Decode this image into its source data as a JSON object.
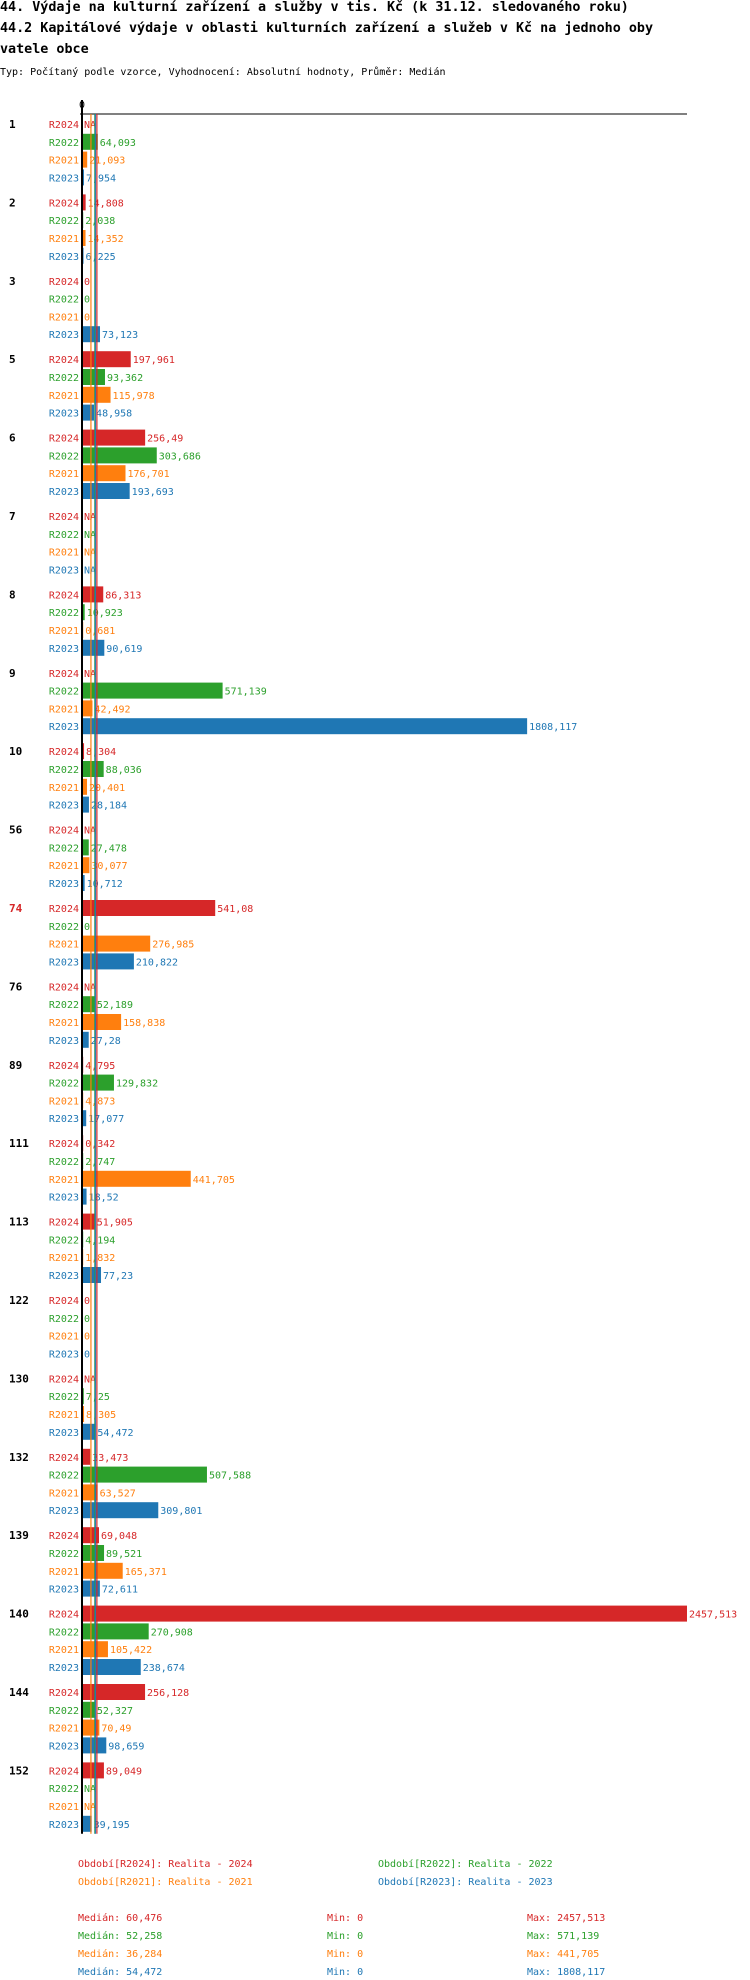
{
  "title_line1": "44. Výdaje na kulturní zařízení a služby v tis. Kč (k 31.12. sledovaného roku)",
  "title_line2": "44.2 Kapitálové výdaje v oblasti kulturních zařízení a služeb v Kč na jednoho oby",
  "title_line3": "vatele obce",
  "subtitle": "Typ: Počítaný podle vzorce, Vyhodnocení: Absolutní hodnoty, Průměr: Medián",
  "colors": {
    "R2024": "#d62728",
    "R2022": "#2ca02c",
    "R2021": "#ff7f0e",
    "R2023": "#1f77b4"
  },
  "chart_data": {
    "type": "bar",
    "orientation": "horizontal",
    "x_axis_label_zero": "0",
    "xlim": [
      0,
      2457.513
    ],
    "highlighted_group": "74",
    "series_order": [
      "R2024",
      "R2022",
      "R2021",
      "R2023"
    ],
    "groups": [
      {
        "label": "1",
        "bars": [
          {
            "s": "R2024",
            "v": null,
            "t": "NA"
          },
          {
            "s": "R2022",
            "v": 64.093,
            "t": "64,093"
          },
          {
            "s": "R2021",
            "v": 21.093,
            "t": "21,093"
          },
          {
            "s": "R2023",
            "v": 7.954,
            "t": "7,954"
          }
        ]
      },
      {
        "label": "2",
        "bars": [
          {
            "s": "R2024",
            "v": 14.808,
            "t": "14,808"
          },
          {
            "s": "R2022",
            "v": 2.038,
            "t": "2,038"
          },
          {
            "s": "R2021",
            "v": 14.352,
            "t": "14,352"
          },
          {
            "s": "R2023",
            "v": 6.225,
            "t": "6,225"
          }
        ]
      },
      {
        "label": "3",
        "bars": [
          {
            "s": "R2024",
            "v": 0,
            "t": "0"
          },
          {
            "s": "R2022",
            "v": 0,
            "t": "0"
          },
          {
            "s": "R2021",
            "v": 0,
            "t": "0"
          },
          {
            "s": "R2023",
            "v": 73.123,
            "t": "73,123"
          }
        ]
      },
      {
        "label": "5",
        "bars": [
          {
            "s": "R2024",
            "v": 197.961,
            "t": "197,961"
          },
          {
            "s": "R2022",
            "v": 93.362,
            "t": "93,362"
          },
          {
            "s": "R2021",
            "v": 115.978,
            "t": "115,978"
          },
          {
            "s": "R2023",
            "v": 48.958,
            "t": "48,958"
          }
        ]
      },
      {
        "label": "6",
        "bars": [
          {
            "s": "R2024",
            "v": 256.49,
            "t": "256,49"
          },
          {
            "s": "R2022",
            "v": 303.686,
            "t": "303,686"
          },
          {
            "s": "R2021",
            "v": 176.701,
            "t": "176,701"
          },
          {
            "s": "R2023",
            "v": 193.693,
            "t": "193,693"
          }
        ]
      },
      {
        "label": "7",
        "bars": [
          {
            "s": "R2024",
            "v": null,
            "t": "NA"
          },
          {
            "s": "R2022",
            "v": null,
            "t": "NA"
          },
          {
            "s": "R2021",
            "v": null,
            "t": "NA"
          },
          {
            "s": "R2023",
            "v": null,
            "t": "NA"
          }
        ]
      },
      {
        "label": "8",
        "bars": [
          {
            "s": "R2024",
            "v": 86.313,
            "t": "86,313"
          },
          {
            "s": "R2022",
            "v": 10.923,
            "t": "10,923"
          },
          {
            "s": "R2021",
            "v": 0.681,
            "t": "0,681"
          },
          {
            "s": "R2023",
            "v": 90.619,
            "t": "90,619"
          }
        ]
      },
      {
        "label": "9",
        "bars": [
          {
            "s": "R2024",
            "v": null,
            "t": "NA"
          },
          {
            "s": "R2022",
            "v": 571.139,
            "t": "571,139"
          },
          {
            "s": "R2021",
            "v": 42.492,
            "t": "42,492"
          },
          {
            "s": "R2023",
            "v": 1808.117,
            "t": "1808,117"
          }
        ]
      },
      {
        "label": "10",
        "bars": [
          {
            "s": "R2024",
            "v": 8.304,
            "t": "8,304"
          },
          {
            "s": "R2022",
            "v": 88.036,
            "t": "88,036"
          },
          {
            "s": "R2021",
            "v": 20.401,
            "t": "20,401"
          },
          {
            "s": "R2023",
            "v": 28.184,
            "t": "28,184"
          }
        ]
      },
      {
        "label": "56",
        "bars": [
          {
            "s": "R2024",
            "v": null,
            "t": "NA"
          },
          {
            "s": "R2022",
            "v": 27.478,
            "t": "27,478"
          },
          {
            "s": "R2021",
            "v": 30.077,
            "t": "30,077"
          },
          {
            "s": "R2023",
            "v": 10.712,
            "t": "10,712"
          }
        ]
      },
      {
        "label": "74",
        "bars": [
          {
            "s": "R2024",
            "v": 541.08,
            "t": "541,08"
          },
          {
            "s": "R2022",
            "v": 0,
            "t": "0"
          },
          {
            "s": "R2021",
            "v": 276.985,
            "t": "276,985"
          },
          {
            "s": "R2023",
            "v": 210.822,
            "t": "210,822"
          }
        ]
      },
      {
        "label": "76",
        "bars": [
          {
            "s": "R2024",
            "v": null,
            "t": "NA"
          },
          {
            "s": "R2022",
            "v": 52.189,
            "t": "52,189"
          },
          {
            "s": "R2021",
            "v": 158.838,
            "t": "158,838"
          },
          {
            "s": "R2023",
            "v": 27.28,
            "t": "27,28"
          }
        ]
      },
      {
        "label": "89",
        "bars": [
          {
            "s": "R2024",
            "v": 4.795,
            "t": "4,795"
          },
          {
            "s": "R2022",
            "v": 129.832,
            "t": "129,832"
          },
          {
            "s": "R2021",
            "v": 4.873,
            "t": "4,873"
          },
          {
            "s": "R2023",
            "v": 17.077,
            "t": "17,077"
          }
        ]
      },
      {
        "label": "111",
        "bars": [
          {
            "s": "R2024",
            "v": 0.342,
            "t": "0,342"
          },
          {
            "s": "R2022",
            "v": 2.747,
            "t": "2,747"
          },
          {
            "s": "R2021",
            "v": 441.705,
            "t": "441,705"
          },
          {
            "s": "R2023",
            "v": 18.52,
            "t": "18,52"
          }
        ]
      },
      {
        "label": "113",
        "bars": [
          {
            "s": "R2024",
            "v": 51.905,
            "t": "51,905"
          },
          {
            "s": "R2022",
            "v": 4.194,
            "t": "4,194"
          },
          {
            "s": "R2021",
            "v": 1.832,
            "t": "1,832"
          },
          {
            "s": "R2023",
            "v": 77.23,
            "t": "77,23"
          }
        ]
      },
      {
        "label": "122",
        "bars": [
          {
            "s": "R2024",
            "v": 0,
            "t": "0"
          },
          {
            "s": "R2022",
            "v": 0,
            "t": "0"
          },
          {
            "s": "R2021",
            "v": 0,
            "t": "0"
          },
          {
            "s": "R2023",
            "v": 0,
            "t": "0"
          }
        ]
      },
      {
        "label": "130",
        "bars": [
          {
            "s": "R2024",
            "v": null,
            "t": "NA"
          },
          {
            "s": "R2022",
            "v": 7.25,
            "t": "7,25"
          },
          {
            "s": "R2021",
            "v": 8.305,
            "t": "8,305"
          },
          {
            "s": "R2023",
            "v": 54.472,
            "t": "54,472"
          }
        ]
      },
      {
        "label": "132",
        "bars": [
          {
            "s": "R2024",
            "v": 33.473,
            "t": "33,473"
          },
          {
            "s": "R2022",
            "v": 507.588,
            "t": "507,588"
          },
          {
            "s": "R2021",
            "v": 63.527,
            "t": "63,527"
          },
          {
            "s": "R2023",
            "v": 309.801,
            "t": "309,801"
          }
        ]
      },
      {
        "label": "139",
        "bars": [
          {
            "s": "R2024",
            "v": 69.048,
            "t": "69,048"
          },
          {
            "s": "R2022",
            "v": 89.521,
            "t": "89,521"
          },
          {
            "s": "R2021",
            "v": 165.371,
            "t": "165,371"
          },
          {
            "s": "R2023",
            "v": 72.611,
            "t": "72,611"
          }
        ]
      },
      {
        "label": "140",
        "bars": [
          {
            "s": "R2024",
            "v": 2457.513,
            "t": "2457,513"
          },
          {
            "s": "R2022",
            "v": 270.908,
            "t": "270,908"
          },
          {
            "s": "R2021",
            "v": 105.422,
            "t": "105,422"
          },
          {
            "s": "R2023",
            "v": 238.674,
            "t": "238,674"
          }
        ]
      },
      {
        "label": "144",
        "bars": [
          {
            "s": "R2024",
            "v": 256.128,
            "t": "256,128"
          },
          {
            "s": "R2022",
            "v": 52.327,
            "t": "52,327"
          },
          {
            "s": "R2021",
            "v": 70.49,
            "t": "70,49"
          },
          {
            "s": "R2023",
            "v": 98.659,
            "t": "98,659"
          }
        ]
      },
      {
        "label": "152",
        "bars": [
          {
            "s": "R2024",
            "v": 89.049,
            "t": "89,049"
          },
          {
            "s": "R2022",
            "v": null,
            "t": "NA"
          },
          {
            "s": "R2021",
            "v": null,
            "t": "NA"
          },
          {
            "s": "R2023",
            "v": 39.195,
            "t": "39,195"
          }
        ]
      }
    ],
    "reference_lines": [
      {
        "name": "Medián R2024",
        "value": 60.476
      },
      {
        "name": "Medián R2022",
        "value": 52.258
      },
      {
        "name": "Medián R2021",
        "value": 36.284
      },
      {
        "name": "Medián R2023",
        "value": 54.472
      }
    ],
    "legend": [
      {
        "s": "R2024",
        "text": "Období[R2024]: Realita - 2024"
      },
      {
        "s": "R2022",
        "text": "Období[R2022]: Realita - 2022"
      },
      {
        "s": "R2021",
        "text": "Období[R2021]: Realita - 2021"
      },
      {
        "s": "R2023",
        "text": "Období[R2023]: Realita - 2023"
      }
    ],
    "stats": [
      {
        "s": "R2024",
        "median": "Medián: 60,476",
        "min": "Min: 0",
        "max": "Max: 2457,513"
      },
      {
        "s": "R2022",
        "median": "Medián: 52,258",
        "min": "Min: 0",
        "max": "Max: 571,139"
      },
      {
        "s": "R2021",
        "median": "Medián: 36,284",
        "min": "Min: 0",
        "max": "Max: 441,705"
      },
      {
        "s": "R2023",
        "median": "Medián: 54,472",
        "min": "Min: 0",
        "max": "Max: 1808,117"
      }
    ]
  }
}
